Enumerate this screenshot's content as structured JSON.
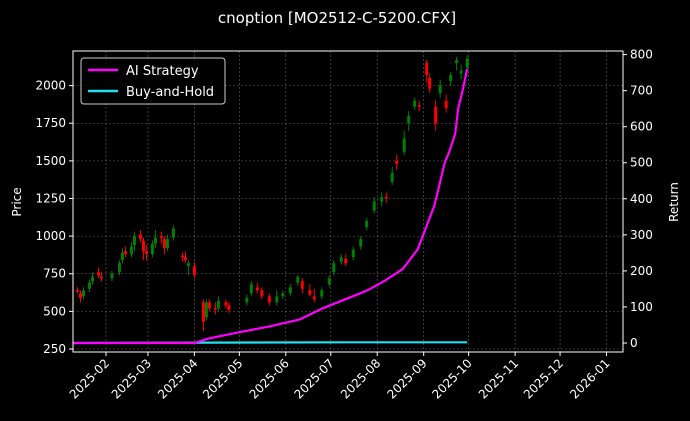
{
  "chart_data": {
    "type": "line",
    "title": "cnoption [MO2512-C-5200.CFX]",
    "ylabel_left": "Price",
    "ylabel_right": "Return",
    "x_ticks": [
      "2025-02",
      "2025-03",
      "2025-04",
      "2025-05",
      "2025-06",
      "2025-07",
      "2025-08",
      "2025-09",
      "2025-10",
      "2025-11",
      "2025-12",
      "2026-01"
    ],
    "left_axis": {
      "ticks": [
        250,
        500,
        750,
        1000,
        1250,
        1500,
        1750,
        2000
      ],
      "range": [
        230,
        2230
      ]
    },
    "right_axis": {
      "ticks": [
        0,
        100,
        200,
        300,
        400,
        500,
        600,
        700,
        800
      ],
      "range": [
        -25,
        810
      ]
    },
    "x_range": [
      "2025-01-10",
      "2026-01-12"
    ],
    "grid": true,
    "legend": {
      "placement": "top-left",
      "entries": [
        {
          "label": "AI Strategy",
          "color": "#ff00ff"
        },
        {
          "label": "Buy-and-Hold",
          "color": "#22e0f0"
        }
      ]
    },
    "candle_colors": {
      "up": "#008000",
      "down": "#ff0000"
    },
    "candles": [
      [
        "2025-01-13",
        640,
        630,
        660,
        620
      ],
      [
        "2025-01-15",
        620,
        590,
        640,
        560
      ],
      [
        "2025-01-17",
        600,
        640,
        660,
        580
      ],
      [
        "2025-01-21",
        650,
        690,
        710,
        630
      ],
      [
        "2025-01-23",
        700,
        730,
        760,
        680
      ],
      [
        "2025-01-27",
        760,
        740,
        790,
        720
      ],
      [
        "2025-01-29",
        730,
        720,
        760,
        700
      ],
      [
        "2025-02-05",
        720,
        750,
        770,
        700
      ],
      [
        "2025-02-10",
        760,
        820,
        840,
        740
      ],
      [
        "2025-02-12",
        840,
        890,
        920,
        820
      ],
      [
        "2025-02-14",
        900,
        880,
        930,
        860
      ],
      [
        "2025-02-18",
        880,
        930,
        960,
        860
      ],
      [
        "2025-02-20",
        940,
        1000,
        1030,
        900
      ],
      [
        "2025-02-24",
        1010,
        980,
        1040,
        960
      ],
      [
        "2025-02-26",
        970,
        900,
        990,
        840
      ],
      [
        "2025-02-28",
        900,
        880,
        940,
        840
      ],
      [
        "2025-03-04",
        880,
        950,
        970,
        860
      ],
      [
        "2025-03-06",
        950,
        990,
        1040,
        920
      ],
      [
        "2025-03-10",
        1000,
        990,
        1030,
        950
      ],
      [
        "2025-03-12",
        980,
        920,
        1000,
        880
      ],
      [
        "2025-03-14",
        920,
        980,
        1010,
        900
      ],
      [
        "2025-03-18",
        990,
        1050,
        1070,
        970
      ],
      [
        "2025-03-24",
        870,
        860,
        890,
        830
      ],
      [
        "2025-03-26",
        860,
        840,
        900,
        820
      ],
      [
        "2025-03-28",
        800,
        820,
        840,
        740
      ],
      [
        "2025-04-01",
        800,
        740,
        830,
        720
      ],
      [
        "2025-04-07",
        560,
        430,
        580,
        370
      ],
      [
        "2025-04-09",
        460,
        560,
        580,
        440
      ],
      [
        "2025-04-11",
        560,
        520,
        580,
        500
      ],
      [
        "2025-04-15",
        520,
        510,
        560,
        480
      ],
      [
        "2025-04-17",
        520,
        570,
        600,
        500
      ],
      [
        "2025-04-22",
        560,
        540,
        580,
        520
      ],
      [
        "2025-04-24",
        540,
        510,
        560,
        490
      ],
      [
        "2025-05-06",
        560,
        590,
        610,
        540
      ],
      [
        "2025-05-09",
        620,
        680,
        700,
        600
      ],
      [
        "2025-05-13",
        660,
        640,
        690,
        620
      ],
      [
        "2025-05-16",
        640,
        600,
        660,
        580
      ],
      [
        "2025-05-21",
        600,
        560,
        620,
        540
      ],
      [
        "2025-05-26",
        560,
        600,
        640,
        540
      ],
      [
        "2025-05-30",
        600,
        620,
        640,
        580
      ],
      [
        "2025-06-04",
        620,
        660,
        680,
        600
      ],
      [
        "2025-06-09",
        690,
        730,
        740,
        670
      ],
      [
        "2025-06-12",
        700,
        650,
        720,
        620
      ],
      [
        "2025-06-17",
        640,
        610,
        680,
        600
      ],
      [
        "2025-06-20",
        600,
        580,
        650,
        560
      ],
      [
        "2025-06-25",
        600,
        640,
        660,
        580
      ],
      [
        "2025-06-30",
        680,
        720,
        740,
        660
      ],
      [
        "2025-07-03",
        760,
        820,
        840,
        740
      ],
      [
        "2025-07-08",
        830,
        860,
        880,
        810
      ],
      [
        "2025-07-11",
        850,
        820,
        880,
        800
      ],
      [
        "2025-07-16",
        860,
        910,
        930,
        840
      ],
      [
        "2025-07-21",
        930,
        980,
        1000,
        910
      ],
      [
        "2025-07-25",
        1060,
        1100,
        1120,
        1040
      ],
      [
        "2025-07-30",
        1170,
        1230,
        1260,
        1150
      ],
      [
        "2025-08-04",
        1230,
        1260,
        1290,
        1200
      ],
      [
        "2025-08-07",
        1260,
        1250,
        1290,
        1220
      ],
      [
        "2025-08-11",
        1360,
        1420,
        1460,
        1340
      ],
      [
        "2025-08-14",
        1500,
        1480,
        1540,
        1440
      ],
      [
        "2025-08-19",
        1560,
        1650,
        1700,
        1540
      ],
      [
        "2025-08-22",
        1750,
        1800,
        1830,
        1700
      ],
      [
        "2025-08-26",
        1860,
        1900,
        1920,
        1840
      ],
      [
        "2025-08-29",
        1870,
        1860,
        1900,
        1830
      ],
      [
        "2025-09-03",
        2150,
        2070,
        2170,
        2020
      ],
      [
        "2025-09-05",
        2050,
        1980,
        2080,
        1950
      ],
      [
        "2025-09-09",
        1860,
        1750,
        1900,
        1700
      ],
      [
        "2025-09-12",
        1950,
        2000,
        2040,
        1920
      ],
      [
        "2025-09-16",
        1900,
        1850,
        1940,
        1820
      ],
      [
        "2025-09-19",
        2030,
        2070,
        2090,
        2000
      ],
      [
        "2025-09-23",
        2150,
        2170,
        2190,
        2100
      ],
      [
        "2025-09-26",
        2080,
        2100,
        2140,
        2040
      ],
      [
        "2025-09-30",
        2120,
        2180,
        2200,
        2100
      ]
    ],
    "series": [
      {
        "name": "AI Strategy",
        "points": [
          [
            "2025-01-10",
            0
          ],
          [
            "2025-04-01",
            0
          ],
          [
            "2025-04-10",
            12
          ],
          [
            "2025-05-01",
            30
          ],
          [
            "2025-05-20",
            45
          ],
          [
            "2025-06-10",
            65
          ],
          [
            "2025-06-25",
            95
          ],
          [
            "2025-07-10",
            120
          ],
          [
            "2025-07-25",
            145
          ],
          [
            "2025-08-05",
            170
          ],
          [
            "2025-08-18",
            205
          ],
          [
            "2025-08-28",
            260
          ],
          [
            "2025-09-03",
            325
          ],
          [
            "2025-09-08",
            380
          ],
          [
            "2025-09-11",
            430
          ],
          [
            "2025-09-15",
            500
          ],
          [
            "2025-09-18",
            530
          ],
          [
            "2025-09-22",
            580
          ],
          [
            "2025-09-24",
            650
          ],
          [
            "2025-09-27",
            700
          ],
          [
            "2025-09-30",
            760
          ]
        ]
      },
      {
        "name": "Buy-and-Hold",
        "points": [
          [
            "2025-01-10",
            0
          ],
          [
            "2025-04-10",
            1
          ],
          [
            "2025-07-10",
            2
          ],
          [
            "2025-09-30",
            2
          ]
        ]
      }
    ]
  }
}
